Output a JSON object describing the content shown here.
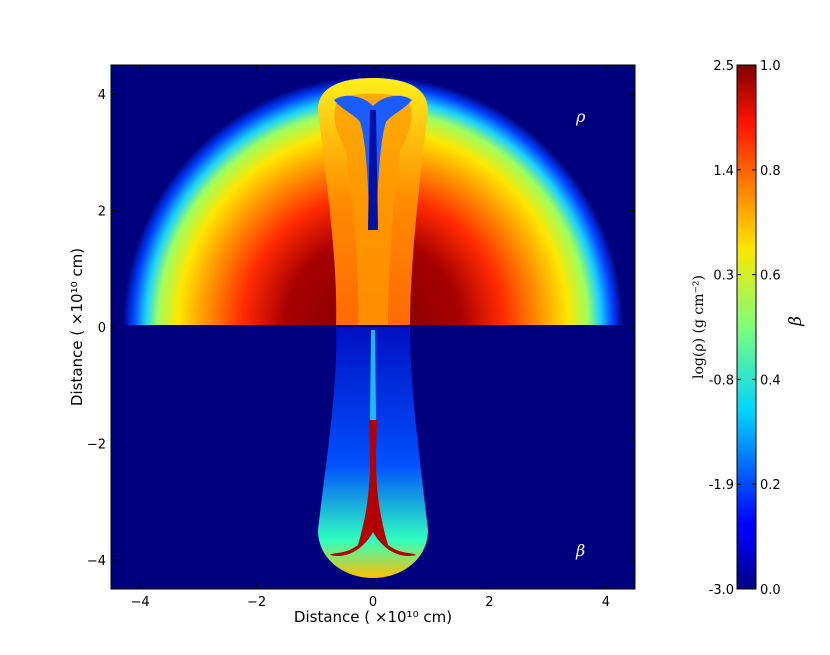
{
  "chart_data": {
    "type": "heatmap",
    "xlabel": "Distance ( ×10¹⁰ cm)",
    "ylabel": "Distance ( ×10¹⁰ cm)",
    "xlim": [
      -4.5,
      4.5
    ],
    "ylim": [
      -4.5,
      4.5
    ],
    "x_ticks": [
      -4,
      -2,
      0,
      2,
      4
    ],
    "y_ticks": [
      -4,
      -2,
      0,
      2,
      4
    ],
    "x_tick_labels": [
      "−4",
      "−2",
      "0",
      "2",
      "4"
    ],
    "y_tick_labels": [
      "−4",
      "−2",
      "0",
      "2",
      "4"
    ],
    "panels": [
      {
        "label": "ρ",
        "region": "upper half (y > 0)",
        "quantity": "log(ρ)"
      },
      {
        "label": "β",
        "region": "lower half (y < 0)",
        "quantity": "β"
      }
    ],
    "colormap": "jet",
    "colorbar": {
      "left_ticks": [
        "2.5",
        "1.4",
        "0.3",
        "-0.8",
        "-1.9",
        "-3.0"
      ],
      "left_range": [
        -3.0,
        2.5
      ],
      "left_label": "log(ρ) (g cm⁻²)",
      "right_ticks": [
        "1.0",
        "0.8",
        "0.6",
        "0.4",
        "0.2",
        "0.0"
      ],
      "right_range": [
        0.0,
        1.0
      ],
      "right_label": "β"
    },
    "grid": false
  }
}
